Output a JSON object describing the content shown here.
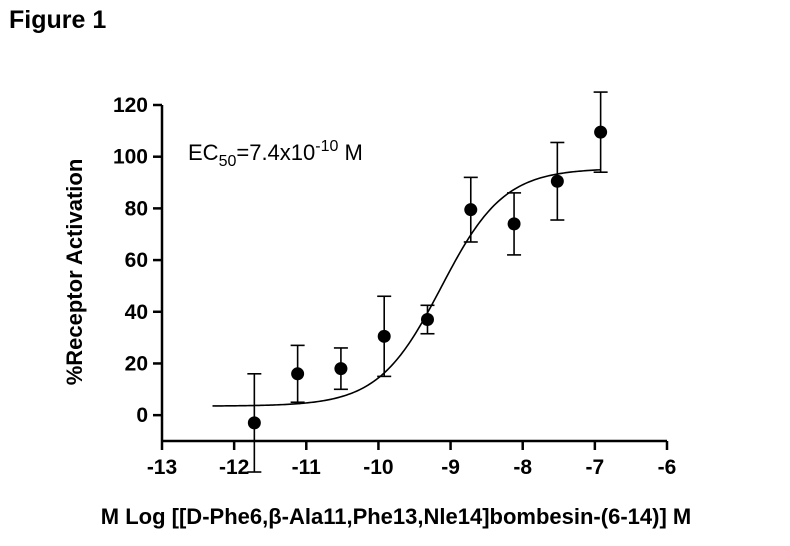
{
  "figure_label": "Figure 1",
  "chart_data": {
    "type": "scatter",
    "xlabel": "M Log [[D-Phe6,β-Ala11,Phe13,Nle14]bombesin-(6-14)] M",
    "ylabel": "%Receptor Activation",
    "xlim": [
      -13,
      -6
    ],
    "ylim": [
      -10,
      120
    ],
    "x_ticks": [
      -13,
      -12,
      -11,
      -10,
      -9,
      -8,
      -7,
      -6
    ],
    "y_ticks": [
      0,
      20,
      40,
      60,
      80,
      100,
      120
    ],
    "x_tick_labels": [
      "-13",
      "-12",
      "-11",
      "-10",
      "-9",
      "-8",
      "-7",
      "-6"
    ],
    "y_tick_labels": [
      "0",
      "20",
      "40",
      "60",
      "80",
      "100",
      "120"
    ],
    "annotation": {
      "prefix": "EC",
      "subscript": "50",
      "mid": "=7.4x10",
      "superscript": "-10",
      "suffix": " M"
    },
    "points": [
      {
        "x": -11.72,
        "y": -3,
        "err": 19
      },
      {
        "x": -11.12,
        "y": 16,
        "err": 11
      },
      {
        "x": -10.52,
        "y": 18,
        "err": 8
      },
      {
        "x": -9.92,
        "y": 30.5,
        "err": 15.5
      },
      {
        "x": -9.32,
        "y": 37,
        "err": 5.5
      },
      {
        "x": -8.72,
        "y": 79.5,
        "err": 12.5
      },
      {
        "x": -8.12,
        "y": 74,
        "err": 12
      },
      {
        "x": -7.52,
        "y": 90.5,
        "err": 15
      },
      {
        "x": -6.92,
        "y": 109.5,
        "err": 15.5
      }
    ],
    "fit": {
      "model": "sigmoidal dose-response",
      "bottom": 3.5,
      "top": 95.5,
      "logEC50": -9.13,
      "hill": 1.0,
      "x_start": -12.3,
      "x_end": -6.92
    },
    "colors": {
      "marker": "#000000",
      "line": "#000000",
      "axis": "#000000"
    }
  }
}
